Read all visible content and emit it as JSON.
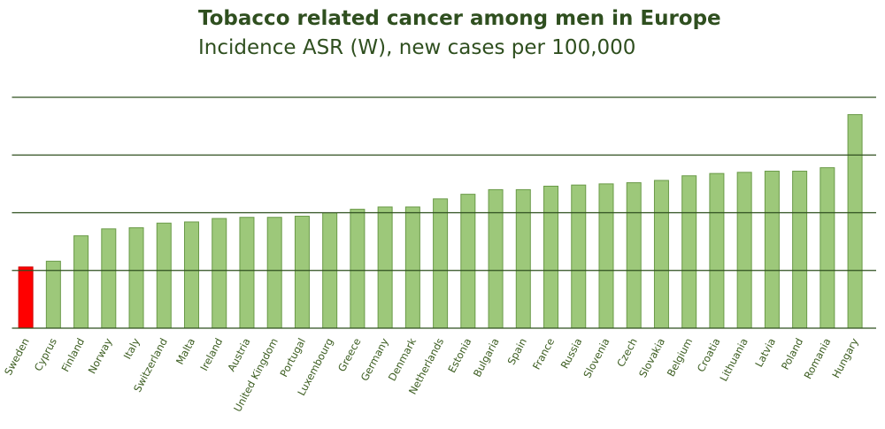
{
  "chart_data": {
    "type": "bar",
    "title": "Tobacco related cancer among men in Europe",
    "subtitle": "Incidence ASR (W), new cases per 100,000",
    "categories": [
      "Sweden",
      "Cyprus",
      "Finland",
      "Norway",
      "Italy",
      "Switzerland",
      "Malta",
      "Ireland",
      "Austria",
      "United Kingdom",
      "Portugal",
      "Luxembourg",
      "Greece",
      "Germany",
      "Denmark",
      "Netherlands",
      "Estonia",
      "Bulgaria",
      "Spain",
      "France",
      "Russia",
      "Slovenia",
      "Czech",
      "Slovakia",
      "Belgium",
      "Croatia",
      "Lithuania",
      "Latvia",
      "Poland",
      "Romania",
      "Hungary"
    ],
    "values": [
      53,
      58,
      80,
      86,
      87,
      91,
      92,
      95,
      96,
      96,
      97,
      100,
      103,
      105,
      105,
      112,
      116,
      120,
      120,
      123,
      124,
      125,
      126,
      128,
      132,
      134,
      135,
      136,
      136,
      139,
      185
    ],
    "colors": [
      "#ff0000",
      "#9dc87a",
      "#9dc87a",
      "#9dc87a",
      "#9dc87a",
      "#9dc87a",
      "#9dc87a",
      "#9dc87a",
      "#9dc87a",
      "#9dc87a",
      "#9dc87a",
      "#9dc87a",
      "#9dc87a",
      "#9dc87a",
      "#9dc87a",
      "#9dc87a",
      "#9dc87a",
      "#9dc87a",
      "#9dc87a",
      "#9dc87a",
      "#9dc87a",
      "#9dc87a",
      "#9dc87a",
      "#9dc87a",
      "#9dc87a",
      "#9dc87a",
      "#9dc87a",
      "#9dc87a",
      "#9dc87a",
      "#9dc87a",
      "#9dc87a"
    ],
    "ylim": [
      0,
      200
    ],
    "yticks": [
      0,
      50,
      100,
      150,
      200
    ],
    "ytick_labels": false,
    "grid": true
  }
}
